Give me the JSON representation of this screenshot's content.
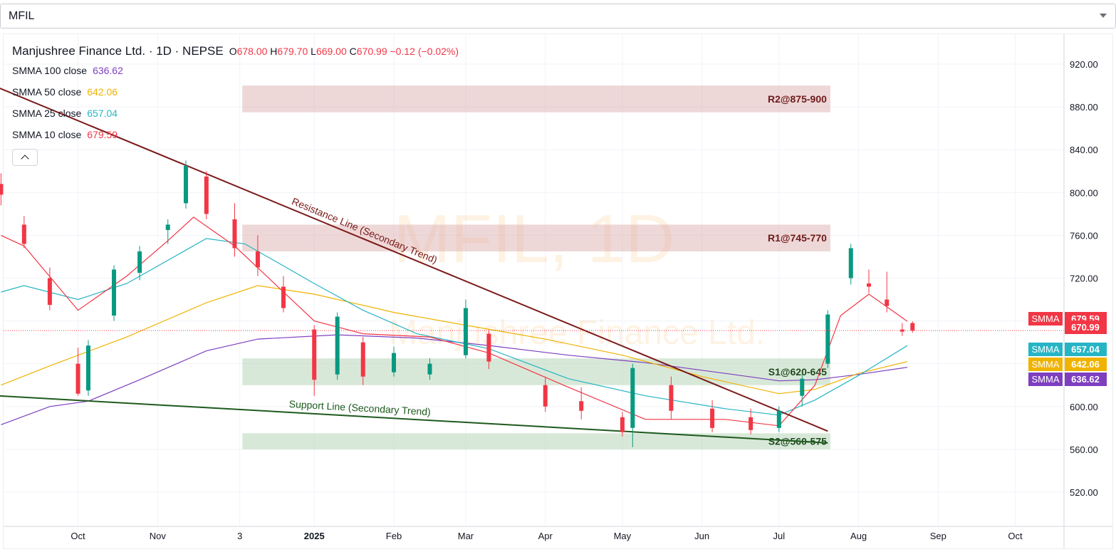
{
  "symbol_select": {
    "value": "MFIL"
  },
  "legend": {
    "title": "Manjushree Finance Ltd. · 1D · NEPSE",
    "ohlc": {
      "o_label": "O",
      "o": "678.00",
      "h_label": "H",
      "h": "679.70",
      "l_label": "L",
      "l": "669.00",
      "c_label": "C",
      "c": "670.99",
      "change": "−0.12 (−0.02%)"
    },
    "mas": [
      {
        "label": "SMMA 100 close",
        "value": "636.62",
        "color": "#7e3fbf"
      },
      {
        "label": "SMMA 50 close",
        "value": "642.06",
        "color": "#f0b300"
      },
      {
        "label": "SMMA 25 close",
        "value": "657.04",
        "color": "#26b5c5"
      },
      {
        "label": "SMMA 10 close",
        "value": "679.59",
        "color": "#f23645"
      }
    ]
  },
  "watermark": {
    "main": "MFIL, 1D",
    "sub": "Manjushree Finance Ltd."
  },
  "colors": {
    "up": "#089981",
    "down": "#f23645",
    "resistance_zone": "#d9a6a6",
    "support_zone": "#a8cba8",
    "resistance_line": "#7b1a1a",
    "support_line": "#1e5a1e"
  },
  "chart_data": {
    "type": "candlestick",
    "x_ticks": [
      "Oct",
      "Nov",
      "3",
      "2025",
      "Feb",
      "Mar",
      "Apr",
      "May",
      "Jun",
      "Jul",
      "Aug",
      "Sep",
      "Oct"
    ],
    "y_ticks": [
      520,
      560,
      600,
      640,
      680,
      720,
      760,
      800,
      840,
      880,
      920
    ],
    "y_tick_labels": [
      "520.00",
      "560.00",
      "600.00",
      "640.00",
      "680.00",
      "720.00",
      "760.00",
      "800.00",
      "840.00",
      "880.00",
      "920.00"
    ],
    "ylim": [
      488,
      948
    ],
    "x_range": [
      "2024-09-02",
      "2025-10-20"
    ],
    "last_close": 670.99,
    "last_close_label": "670.99",
    "zones": [
      {
        "label": "R2@875-900",
        "low": 875,
        "high": 900,
        "kind": "resistance"
      },
      {
        "label": "R1@745-770",
        "low": 745,
        "high": 770,
        "kind": "resistance"
      },
      {
        "label": "S1@620-645",
        "low": 620,
        "high": 645,
        "kind": "support"
      },
      {
        "label": "S2@560-575",
        "low": 560,
        "high": 575,
        "kind": "support"
      }
    ],
    "trendlines": [
      {
        "label": "Resistance Line (Secondary Trend)",
        "kind": "resistance",
        "points": [
          [
            "2024-08-31",
            898
          ],
          [
            "2025-07-20",
            577
          ]
        ]
      },
      {
        "label": "Support Line (Secondary Trend)",
        "kind": "support",
        "points": [
          [
            "2024-08-31",
            610
          ],
          [
            "2025-07-20",
            566
          ]
        ]
      }
    ],
    "ma_badges": [
      {
        "label": "SMMA",
        "value": "679.59",
        "y": 679.59,
        "color": "#f23645"
      },
      {
        "label": "SMMA",
        "value": "657.04",
        "y": 657.04,
        "color": "#26b5c5"
      },
      {
        "label": "SMMA",
        "value": "642.06",
        "y": 642.06,
        "color": "#f0b300"
      },
      {
        "label": "SMMA",
        "value": "636.62",
        "y": 636.62,
        "color": "#7e3fbf"
      }
    ],
    "series": [
      {
        "name": "SMMA 100 close",
        "color": "#7e3fbf",
        "points": [
          [
            "2024-09-01",
            583
          ],
          [
            "2024-09-20",
            600
          ],
          [
            "2024-10-05",
            605
          ],
          [
            "2024-10-25",
            625
          ],
          [
            "2024-11-20",
            652
          ],
          [
            "2024-12-10",
            663
          ],
          [
            "2025-01-10",
            667
          ],
          [
            "2025-02-10",
            664
          ],
          [
            "2025-03-10",
            657
          ],
          [
            "2025-04-10",
            648
          ],
          [
            "2025-05-10",
            641
          ],
          [
            "2025-06-10",
            631
          ],
          [
            "2025-07-01",
            624
          ],
          [
            "2025-07-15",
            625
          ],
          [
            "2025-08-01",
            630
          ],
          [
            "2025-08-20",
            636.62
          ]
        ]
      },
      {
        "name": "SMMA 50 close",
        "color": "#f0b300",
        "points": [
          [
            "2024-09-01",
            620
          ],
          [
            "2024-09-20",
            638
          ],
          [
            "2024-10-20",
            665
          ],
          [
            "2024-11-20",
            697
          ],
          [
            "2024-12-10",
            713
          ],
          [
            "2025-01-01",
            705
          ],
          [
            "2025-02-01",
            688
          ],
          [
            "2025-03-01",
            676
          ],
          [
            "2025-04-01",
            663
          ],
          [
            "2025-05-01",
            648
          ],
          [
            "2025-06-01",
            628
          ],
          [
            "2025-07-01",
            612
          ],
          [
            "2025-07-15",
            616
          ],
          [
            "2025-08-01",
            631
          ],
          [
            "2025-08-20",
            642.06
          ]
        ]
      },
      {
        "name": "SMMA 25 close",
        "color": "#26b5c5",
        "points": [
          [
            "2024-09-01",
            707
          ],
          [
            "2024-09-10",
            713
          ],
          [
            "2024-10-01",
            700
          ],
          [
            "2024-10-20",
            715
          ],
          [
            "2024-11-20",
            757
          ],
          [
            "2024-12-05",
            752
          ],
          [
            "2025-01-01",
            715
          ],
          [
            "2025-01-20",
            690
          ],
          [
            "2025-02-10",
            668
          ],
          [
            "2025-03-10",
            654
          ],
          [
            "2025-04-10",
            626
          ],
          [
            "2025-05-10",
            610
          ],
          [
            "2025-06-10",
            598
          ],
          [
            "2025-07-01",
            592
          ],
          [
            "2025-07-15",
            606
          ],
          [
            "2025-08-01",
            629
          ],
          [
            "2025-08-20",
            657.04
          ]
        ]
      },
      {
        "name": "SMMA 10 close",
        "color": "#f23645",
        "points": [
          [
            "2024-09-01",
            760
          ],
          [
            "2024-09-10",
            750
          ],
          [
            "2024-10-01",
            690
          ],
          [
            "2024-10-20",
            722
          ],
          [
            "2024-11-05",
            755
          ],
          [
            "2024-11-15",
            777
          ],
          [
            "2024-12-01",
            750
          ],
          [
            "2025-01-01",
            680
          ],
          [
            "2025-01-20",
            668
          ],
          [
            "2025-02-15",
            665
          ],
          [
            "2025-03-10",
            650
          ],
          [
            "2025-04-10",
            618
          ],
          [
            "2025-05-10",
            588
          ],
          [
            "2025-06-10",
            588
          ],
          [
            "2025-07-01",
            582
          ],
          [
            "2025-07-15",
            620
          ],
          [
            "2025-07-25",
            685
          ],
          [
            "2025-08-05",
            705
          ],
          [
            "2025-08-20",
            679.59
          ]
        ]
      },
      {
        "name": "MFIL",
        "color": "#089981",
        "ohlc": [
          [
            "2024-09-01",
            808,
            818,
            788,
            798
          ],
          [
            "2024-09-10",
            770,
            778,
            748,
            752
          ],
          [
            "2024-09-20",
            720,
            730,
            690,
            695
          ],
          [
            "2024-10-01",
            640,
            655,
            610,
            612
          ],
          [
            "2024-10-05",
            615,
            662,
            610,
            657
          ],
          [
            "2024-10-15",
            685,
            732,
            680,
            728
          ],
          [
            "2024-10-25",
            725,
            750,
            718,
            745
          ],
          [
            "2024-11-05",
            765,
            775,
            752,
            770
          ],
          [
            "2024-11-12",
            790,
            830,
            785,
            825
          ],
          [
            "2024-11-20",
            815,
            820,
            775,
            780
          ],
          [
            "2024-12-01",
            775,
            790,
            740,
            748
          ],
          [
            "2024-12-10",
            745,
            760,
            722,
            730
          ],
          [
            "2024-12-20",
            712,
            722,
            688,
            692
          ],
          [
            "2025-01-01",
            672,
            676,
            610,
            625
          ],
          [
            "2025-01-10",
            630,
            688,
            625,
            684
          ],
          [
            "2025-01-20",
            660,
            665,
            620,
            628
          ],
          [
            "2025-02-01",
            632,
            656,
            628,
            650
          ],
          [
            "2025-02-15",
            630,
            645,
            625,
            640
          ],
          [
            "2025-03-01",
            648,
            700,
            645,
            692
          ],
          [
            "2025-03-10",
            668,
            672,
            635,
            642
          ],
          [
            "2025-04-01",
            620,
            628,
            595,
            600
          ],
          [
            "2025-04-15",
            605,
            618,
            588,
            596
          ],
          [
            "2025-05-01",
            590,
            595,
            572,
            576
          ],
          [
            "2025-05-05",
            580,
            640,
            562,
            636
          ],
          [
            "2025-05-20",
            620,
            628,
            588,
            596
          ],
          [
            "2025-06-05",
            598,
            606,
            576,
            580
          ],
          [
            "2025-06-20",
            590,
            598,
            574,
            578
          ],
          [
            "2025-07-01",
            580,
            600,
            576,
            596
          ],
          [
            "2025-07-10",
            610,
            630,
            600,
            626
          ],
          [
            "2025-07-20",
            640,
            690,
            636,
            686
          ],
          [
            "2025-07-29",
            720,
            752,
            714,
            748
          ],
          [
            "2025-08-05",
            715,
            728,
            706,
            712
          ],
          [
            "2025-08-12",
            700,
            726,
            688,
            694
          ],
          [
            "2025-08-18",
            672,
            678,
            666,
            670
          ],
          [
            "2025-08-22",
            678,
            679.7,
            669,
            670.99
          ]
        ]
      }
    ]
  }
}
